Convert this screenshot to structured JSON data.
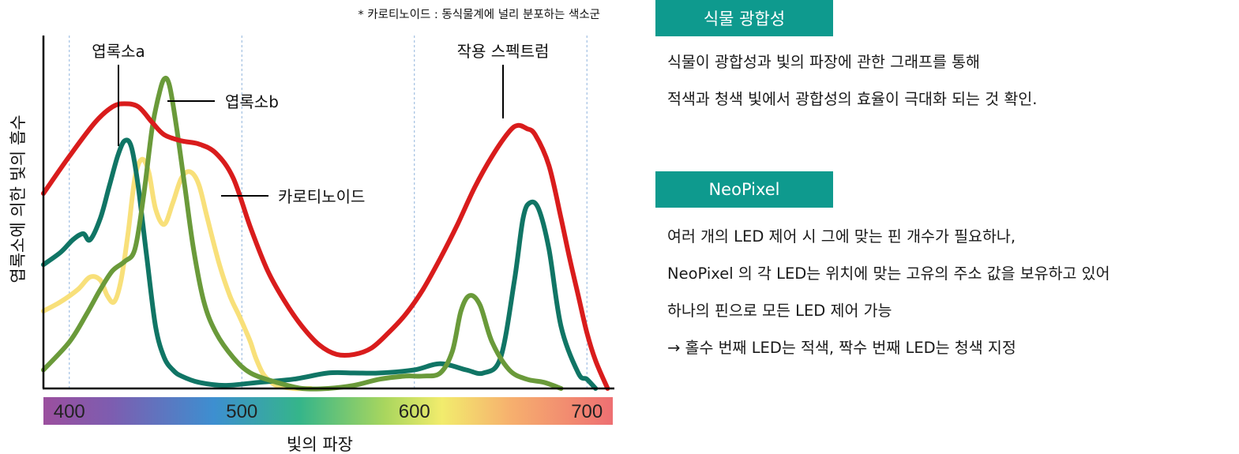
{
  "chart_data": {
    "type": "line",
    "note": "* 카로티노이드 : 동식물계에 널리 분포하는 색소군",
    "xlabel": "빛의 파장",
    "ylabel": "엽록소에 의한 빛의 흡수",
    "xlim": [
      385,
      715
    ],
    "ylim": [
      0,
      100
    ],
    "x_ticks": [
      400,
      500,
      600,
      700
    ],
    "x_tick_labels": [
      "400",
      "500",
      "600",
      "700"
    ],
    "colorbar": true,
    "grid": "vertical dashed at 400, 500, 600, 700",
    "series": [
      {
        "name": "작용 스펙트럼",
        "color": "#d91c1c",
        "x": [
          385,
          400,
          415,
          425,
          432,
          440,
          448,
          455,
          465,
          475,
          485,
          495,
          505,
          515,
          525,
          535,
          545,
          555,
          565,
          575,
          585,
          595,
          605,
          615,
          625,
          635,
          645,
          655,
          660,
          665,
          670,
          678,
          685,
          690,
          695,
          700,
          705,
          712
        ],
        "y": [
          63,
          75,
          86,
          91,
          92,
          91,
          86,
          82,
          80,
          79,
          76,
          68,
          52,
          38,
          28,
          20,
          14,
          11,
          11,
          13,
          18,
          24,
          32,
          42,
          53,
          65,
          75,
          83,
          85,
          84,
          82,
          72,
          55,
          42,
          30,
          18,
          9,
          0
        ]
      },
      {
        "name": "엽록소a",
        "color": "#107565",
        "x": [
          385,
          395,
          402,
          408,
          412,
          418,
          423,
          428,
          432,
          436,
          440,
          445,
          450,
          455,
          460,
          465,
          475,
          490,
          510,
          530,
          550,
          565,
          580,
          600,
          615,
          630,
          640,
          650,
          658,
          663,
          667,
          672,
          678,
          685,
          695,
          700,
          705
        ],
        "y": [
          40,
          44,
          48,
          50,
          48,
          55,
          65,
          75,
          80,
          78,
          65,
          42,
          20,
          10,
          6,
          4,
          2,
          1,
          2,
          3,
          5,
          5,
          5,
          6,
          8,
          6,
          5,
          10,
          35,
          55,
          60,
          58,
          45,
          20,
          5,
          3,
          0
        ]
      },
      {
        "name": "엽록소b",
        "color": "#6a9a3a",
        "x": [
          385,
          400,
          410,
          418,
          425,
          432,
          438,
          443,
          448,
          452,
          455,
          458,
          462,
          467,
          472,
          478,
          485,
          495,
          505,
          520,
          535,
          550,
          565,
          580,
          595,
          605,
          615,
          622,
          627,
          632,
          638,
          645,
          655,
          665,
          675,
          685
        ],
        "y": [
          6,
          15,
          24,
          32,
          38,
          41,
          45,
          62,
          84,
          95,
          100,
          98,
          85,
          65,
          45,
          28,
          18,
          10,
          5,
          2,
          0,
          0,
          1,
          3,
          4,
          4,
          5,
          12,
          25,
          30,
          27,
          15,
          6,
          3,
          2,
          0
        ]
      },
      {
        "name": "카로티노이드",
        "color": "#f8e07a",
        "x": [
          385,
          395,
          405,
          412,
          418,
          422,
          426,
          430,
          434,
          438,
          442,
          446,
          450,
          455,
          460,
          465,
          470,
          475,
          480,
          487,
          493,
          498,
          502,
          505,
          508,
          512,
          515,
          520,
          530,
          540
        ],
        "y": [
          25,
          28,
          32,
          36,
          35,
          30,
          28,
          35,
          50,
          68,
          74,
          70,
          58,
          53,
          60,
          68,
          70,
          66,
          55,
          40,
          30,
          24,
          19,
          15,
          10,
          5,
          3,
          1,
          0,
          0
        ]
      }
    ]
  },
  "sections": [
    {
      "badge": "식물 광합성",
      "lines": [
        "식물이 광합성과 빛의 파장에 관한 그래프를 통해",
        "적색과 청색 빛에서 광합성의 효율이 극대화 되는 것 확인."
      ]
    },
    {
      "badge": "NeoPixel",
      "lines": [
        "여러 개의 LED 제어 시 그에 맞는 핀 개수가 필요하나,",
        "NeoPixel 의 각 LED는 위치에 맞는 고유의 주소 값을 보유하고 있어",
        "하나의 핀으로 모든 LED 제어 가능",
        "→  홀수 번째 LED는 적색, 짝수 번째 LED는 청색 지정"
      ]
    }
  ]
}
